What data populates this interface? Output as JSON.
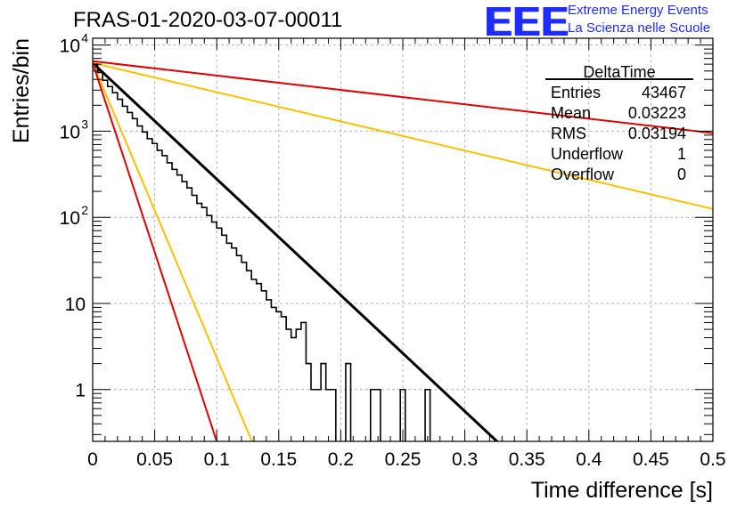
{
  "title": "FRAS-01-2020-03-07-00011",
  "logo": {
    "mark": "EEE",
    "line1": "Extreme Energy Events",
    "line2": "La Scienza nelle Scuole"
  },
  "stats": {
    "name": "DeltaTime",
    "rows": [
      {
        "label": "Entries",
        "value": "43467"
      },
      {
        "label": "Mean",
        "value": "0.03223"
      },
      {
        "label": "RMS",
        "value": "0.03194"
      },
      {
        "label": "Underflow",
        "value": "1"
      },
      {
        "label": "Overflow",
        "value": "0"
      }
    ]
  },
  "chart_data": {
    "type": "line",
    "xlabel": "Time difference [s]",
    "ylabel": "Entries/bin",
    "xlim": [
      0,
      0.5
    ],
    "ylim": [
      0.25,
      12000
    ],
    "yscale": "log",
    "grid": true,
    "x_ticks": [
      0,
      0.05,
      0.1,
      0.15,
      0.2,
      0.25,
      0.3,
      0.35,
      0.4,
      0.45,
      0.5
    ],
    "x_tick_labels": [
      "0",
      "0.05",
      "0.1",
      "0.15",
      "0.2",
      "0.25",
      "0.3",
      "0.35",
      "0.4",
      "0.45",
      "0.5"
    ],
    "y_ticks": [
      {
        "value": 1,
        "label": "1",
        "exp": ""
      },
      {
        "value": 10,
        "label": "10",
        "exp": ""
      },
      {
        "value": 100,
        "label": "10",
        "exp": "2"
      },
      {
        "value": 1000,
        "label": "10",
        "exp": "3"
      },
      {
        "value": 10000,
        "label": "10",
        "exp": "4"
      }
    ],
    "histogram": {
      "color": "#000000",
      "bin_width": 0.004,
      "counts": [
        6000,
        4800,
        3900,
        3300,
        2800,
        2350,
        1950,
        1650,
        1400,
        1150,
        980,
        820,
        720,
        600,
        520,
        430,
        360,
        310,
        260,
        220,
        180,
        145,
        130,
        105,
        88,
        75,
        62,
        50,
        44,
        36,
        30,
        24,
        19,
        17,
        14,
        11,
        9,
        8,
        7,
        5,
        4,
        5,
        6,
        2,
        1,
        1,
        2,
        1,
        1,
        0,
        0,
        2,
        0,
        0,
        0,
        0,
        1,
        1,
        0,
        0,
        0,
        0,
        1,
        0,
        0,
        0,
        0,
        1,
        0,
        0,
        0,
        0,
        0,
        0,
        0,
        0,
        0,
        0,
        0,
        0,
        0,
        0,
        0,
        0,
        0,
        0,
        0,
        0,
        0,
        0,
        0,
        0,
        0,
        0,
        0,
        0,
        0,
        0,
        0,
        0,
        0,
        0,
        0,
        0,
        0,
        0,
        0,
        0,
        0,
        0,
        0,
        0,
        0,
        0,
        0,
        0,
        0,
        0,
        0,
        0,
        0,
        0,
        0,
        0,
        0
      ]
    },
    "fits": [
      {
        "color": "#000000",
        "x": [
          0,
          0.33
        ],
        "y": [
          6200,
          0.22
        ]
      },
      {
        "color": "#ffc000",
        "x": [
          0,
          0.13
        ],
        "y": [
          6200,
          0.22
        ]
      },
      {
        "color": "#ffc000",
        "x": [
          0,
          0.5
        ],
        "y": [
          6200,
          125
        ]
      },
      {
        "color": "#e00000",
        "x": [
          0,
          0.1
        ],
        "y": [
          6200,
          0.25
        ]
      },
      {
        "color": "#e00000",
        "x": [
          0,
          0.5
        ],
        "y": [
          6500,
          950
        ]
      }
    ]
  }
}
